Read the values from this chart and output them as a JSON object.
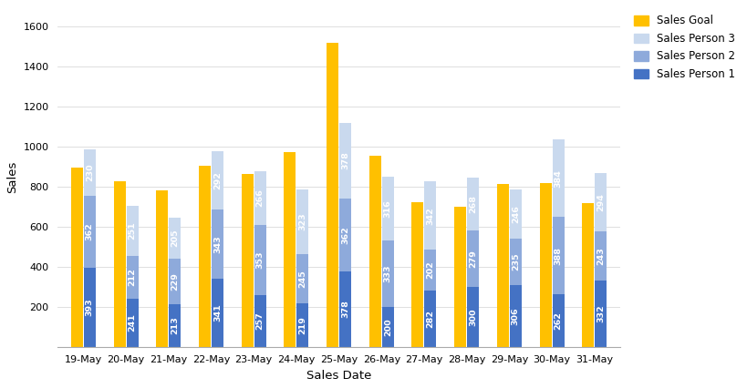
{
  "dates": [
    "19-May",
    "20-May",
    "21-May",
    "22-May",
    "23-May",
    "24-May",
    "25-May",
    "26-May",
    "27-May",
    "28-May",
    "29-May",
    "30-May",
    "31-May"
  ],
  "sales_goal": [
    893,
    828,
    783,
    903,
    863,
    970,
    1520,
    953,
    723,
    700,
    813,
    818,
    718
  ],
  "sp1": [
    393,
    241,
    213,
    341,
    257,
    219,
    378,
    200,
    282,
    300,
    306,
    262,
    332
  ],
  "sp2": [
    362,
    212,
    229,
    343,
    353,
    245,
    362,
    333,
    202,
    279,
    235,
    388,
    243
  ],
  "sp3": [
    230,
    251,
    205,
    292,
    266,
    323,
    378,
    316,
    342,
    268,
    246,
    384,
    294
  ],
  "color_goal": "#FFC000",
  "color_sp1": "#4472C4",
  "color_sp2": "#8EAADB",
  "color_sp3": "#C9D9EE",
  "xlabel": "Sales Date",
  "ylabel": "Sales",
  "ylim": [
    0,
    1700
  ],
  "yticks": [
    0,
    200,
    400,
    600,
    800,
    1000,
    1200,
    1400,
    1600
  ],
  "legend_labels": [
    "Sales Goal",
    "Sales Person 3",
    "Sales Person 2",
    "Sales Person 1"
  ],
  "bar_width": 0.28,
  "label_fontsize": 6.8,
  "axis_label_fontsize": 9.5,
  "tick_fontsize": 8,
  "legend_fontsize": 8.5
}
